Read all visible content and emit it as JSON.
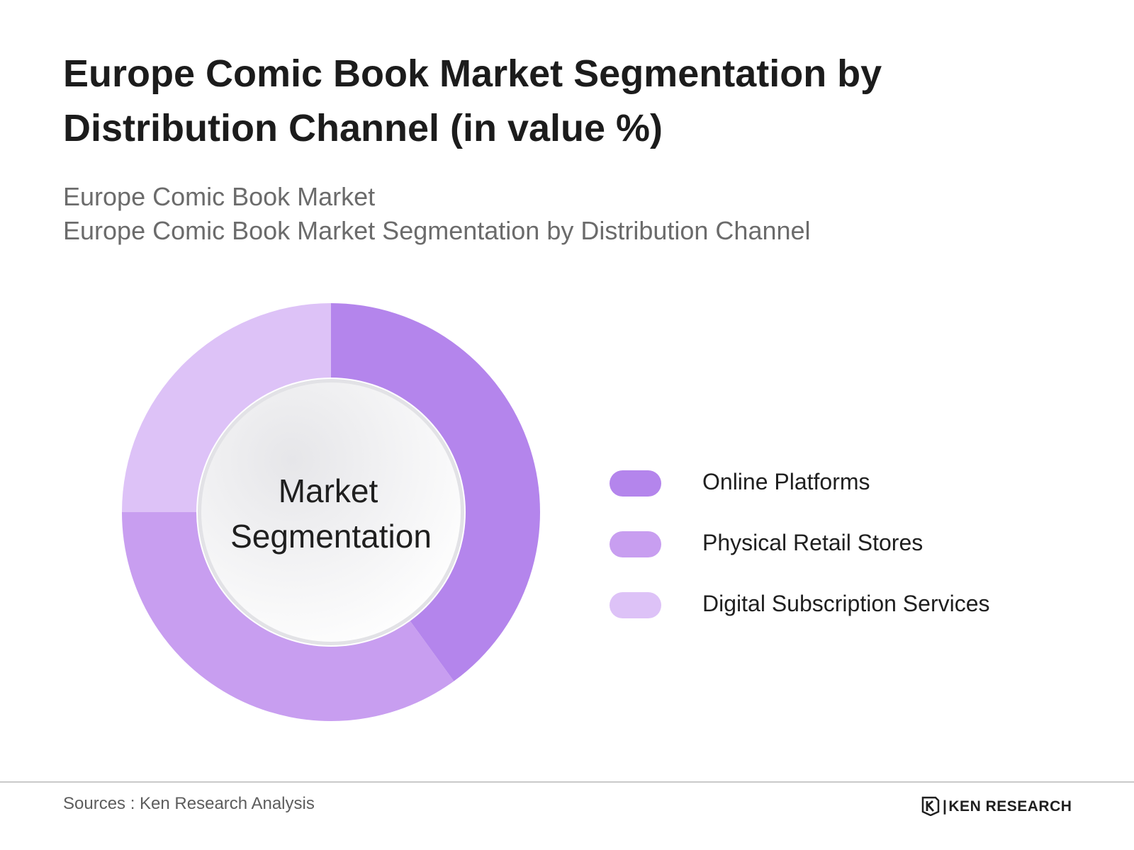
{
  "title": "Europe Comic Book Market Segmentation by Distribution Channel (in value %)",
  "subtitles": [
    "Europe Comic Book Market",
    "Europe Comic Book Market Segmentation by Distribution Channel"
  ],
  "chart_data": {
    "type": "pie",
    "variant": "donut",
    "center_label": [
      "Market",
      "Segmentation"
    ],
    "categories": [
      "Online Platforms",
      "Physical Retail Stores",
      "Digital Subscription Services"
    ],
    "values": [
      40,
      35,
      25
    ],
    "colors": [
      "#b485ec",
      "#c89ef0",
      "#ddc2f7"
    ],
    "legend_position": "right"
  },
  "footer": {
    "source": "Sources : Ken Research Analysis",
    "brand": "KEN RESEARCH",
    "brand_icon": "ken-research-logo"
  }
}
